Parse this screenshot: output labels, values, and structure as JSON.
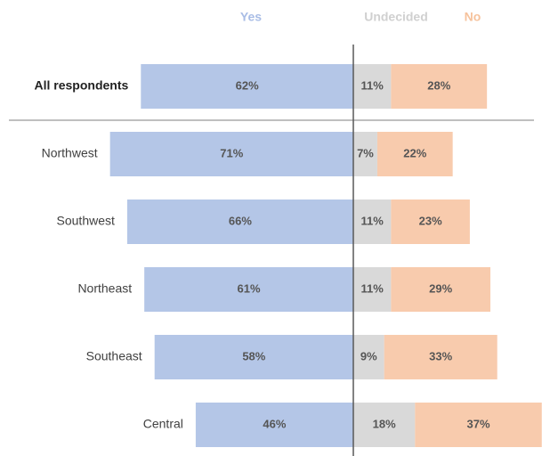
{
  "chart_data": {
    "type": "diverging_bar",
    "categories": [
      "All respondents",
      "Northwest",
      "Southwest",
      "Northeast",
      "Southeast",
      "Central"
    ],
    "series": [
      {
        "name": "Yes",
        "color": "#b4c6e7",
        "legend_color": "#a9bde6",
        "values": [
          62,
          71,
          66,
          61,
          58,
          46
        ],
        "value_labels": [
          "62%",
          "71%",
          "66%",
          "61%",
          "58%",
          "46%"
        ]
      },
      {
        "name": "Undecided",
        "color": "#d9d9d9",
        "legend_color": "#d0d0d0",
        "values": [
          11,
          7,
          11,
          11,
          9,
          18
        ],
        "value_labels": [
          "11%",
          "7%",
          "11%",
          "11%",
          "9%",
          "18%"
        ]
      },
      {
        "name": "No",
        "color": "#f8cbad",
        "legend_color": "#f6c29c",
        "values": [
          28,
          22,
          23,
          29,
          33,
          37
        ],
        "value_labels": [
          "28%",
          "22%",
          "23%",
          "29%",
          "33%",
          "37%"
        ]
      }
    ]
  }
}
